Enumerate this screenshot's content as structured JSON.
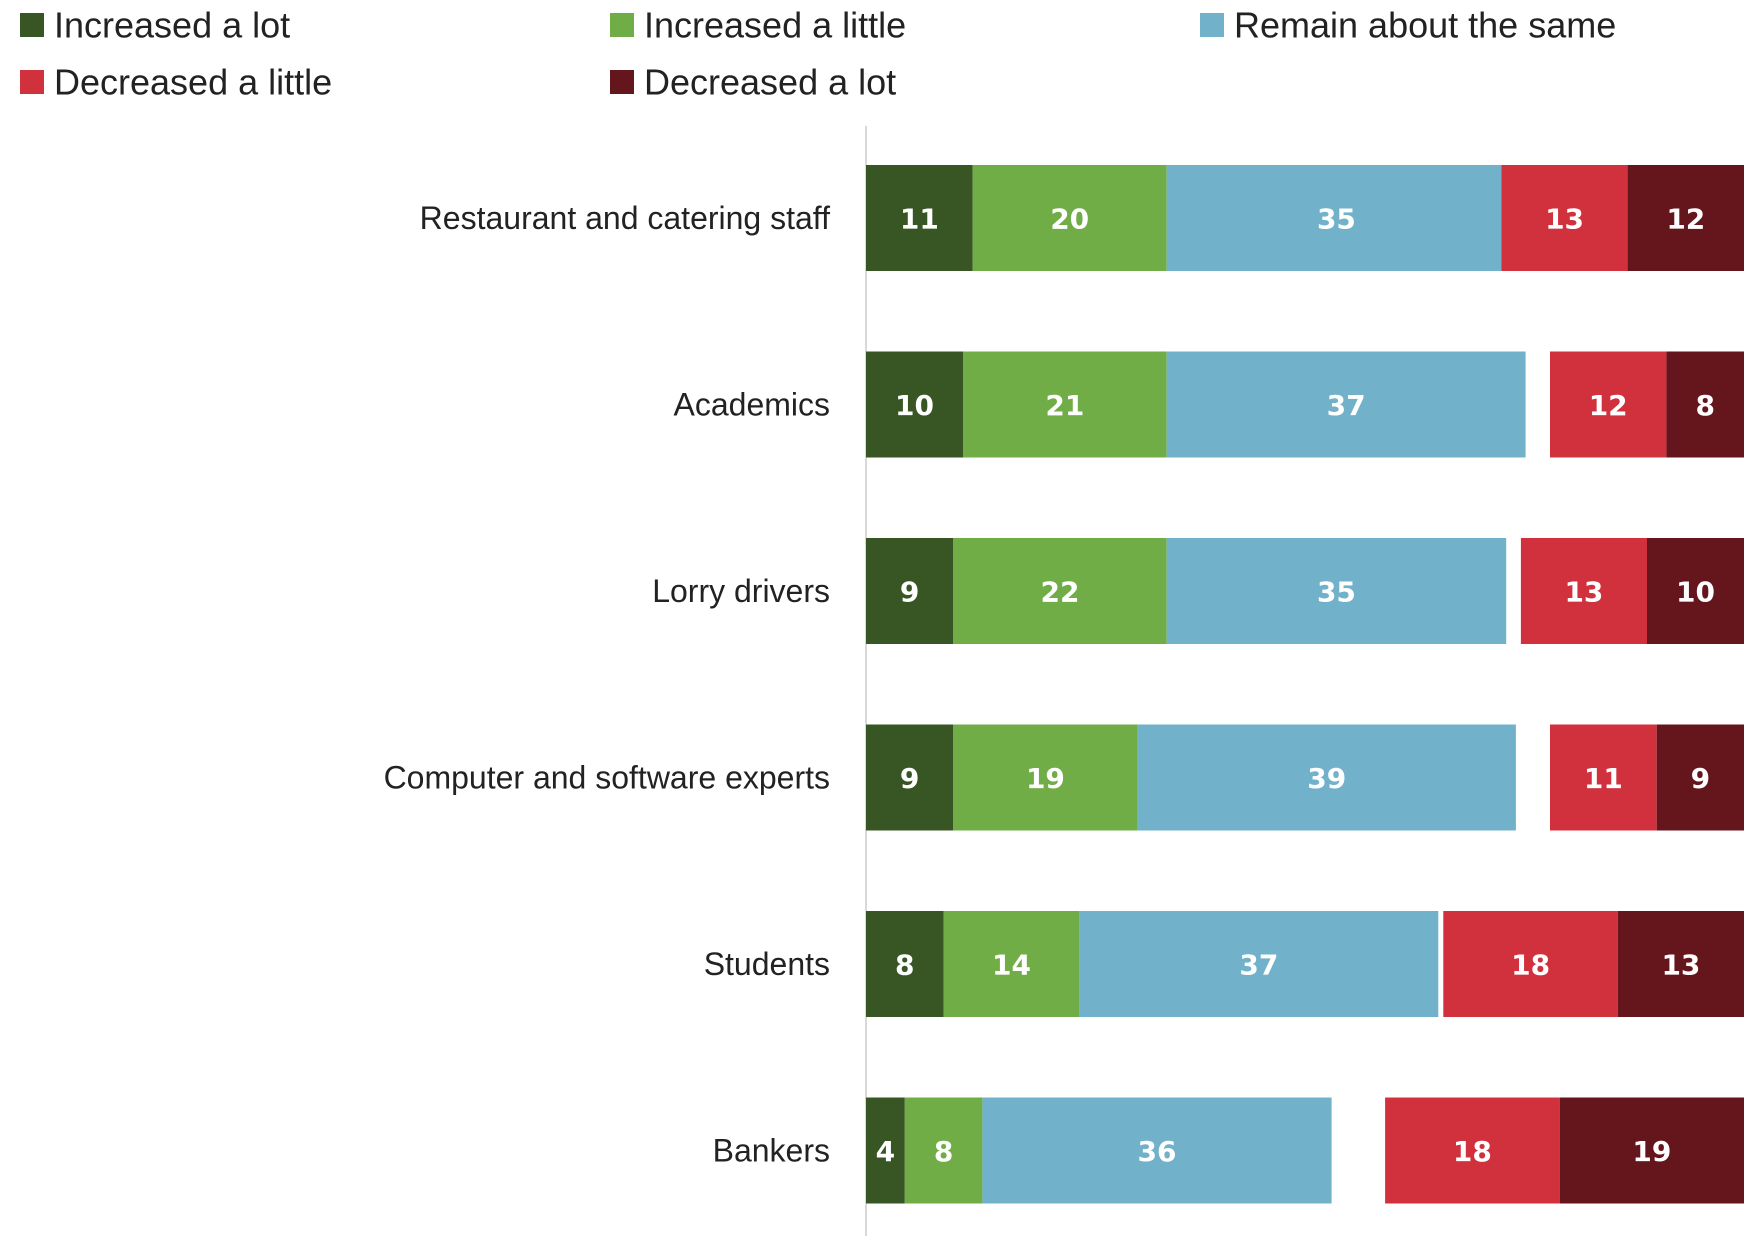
{
  "chart_data": {
    "type": "bar",
    "orientation": "horizontal",
    "stacked": true,
    "categories": [
      "Restaurant and catering staff",
      "Academics",
      "Lorry drivers",
      "Computer and software experts",
      "Students",
      "Bankers"
    ],
    "series": [
      {
        "name": "Increased a lot",
        "color": "#375623",
        "values": [
          11,
          10,
          9,
          9,
          8,
          4
        ]
      },
      {
        "name": "Increased a little",
        "color": "#70AD47",
        "values": [
          20,
          21,
          22,
          19,
          14,
          8
        ]
      },
      {
        "name": "Remain about the same",
        "color": "#71B2CA",
        "values": [
          35,
          37,
          35,
          39,
          37,
          36
        ]
      },
      {
        "name": "Decreased a little",
        "color": "#D0313D",
        "values": [
          13,
          12,
          13,
          11,
          18,
          18
        ]
      },
      {
        "name": "Decreased a lot",
        "color": "#65161C",
        "values": [
          12,
          8,
          10,
          9,
          13,
          19
        ]
      }
    ],
    "xlabel": "",
    "ylabel": "",
    "title": "",
    "legend": "top",
    "grid": false,
    "value_labels": true
  }
}
